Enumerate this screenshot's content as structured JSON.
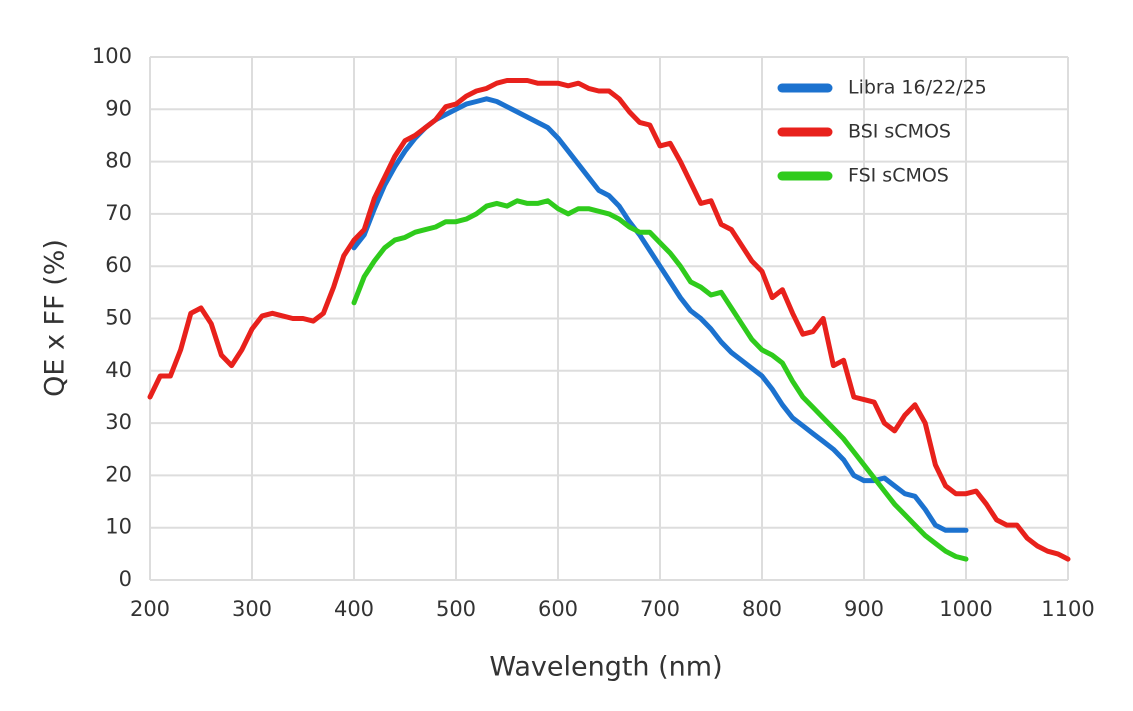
{
  "chart_data": {
    "type": "line",
    "x_label": "Wavelength (nm)",
    "y_label": "QE x FF (%)",
    "x": [
      200,
      210,
      220,
      230,
      240,
      250,
      260,
      270,
      280,
      290,
      300,
      310,
      320,
      330,
      340,
      350,
      360,
      370,
      380,
      390,
      400,
      410,
      420,
      430,
      440,
      450,
      460,
      470,
      480,
      490,
      500,
      510,
      520,
      530,
      540,
      550,
      560,
      570,
      580,
      590,
      600,
      610,
      620,
      630,
      640,
      650,
      660,
      670,
      680,
      690,
      700,
      710,
      720,
      730,
      740,
      750,
      760,
      770,
      780,
      790,
      800,
      810,
      820,
      830,
      840,
      850,
      860,
      870,
      880,
      890,
      900,
      910,
      920,
      930,
      940,
      950,
      960,
      970,
      980,
      990,
      1000,
      1010,
      1020,
      1030,
      1040,
      1050,
      1060,
      1070,
      1080,
      1090,
      1100
    ],
    "series": [
      {
        "name": "Libra 16/22/25",
        "color": "#1c72cf",
        "values": [
          null,
          null,
          null,
          null,
          null,
          null,
          null,
          null,
          null,
          null,
          null,
          null,
          null,
          null,
          null,
          null,
          null,
          null,
          null,
          null,
          63.5,
          66,
          71,
          75.5,
          79,
          82,
          84.5,
          86.5,
          88,
          89,
          90,
          91,
          91.5,
          92,
          91.5,
          90.5,
          89.5,
          88.5,
          87.5,
          86.5,
          84.5,
          82,
          79.5,
          77,
          74.5,
          73.5,
          71.5,
          68.5,
          66,
          63,
          60,
          57,
          54,
          51.5,
          50,
          48,
          45.5,
          43.5,
          42,
          40.5,
          39,
          36.5,
          33.5,
          31,
          29.5,
          28,
          26.5,
          25,
          23,
          20,
          19,
          19,
          19.5,
          18,
          16.5,
          16,
          13.5,
          10.5,
          9.5,
          9.5,
          9.5,
          null,
          null,
          null,
          null,
          null,
          null,
          null,
          null,
          null,
          null
        ]
      },
      {
        "name": "BSI sCMOS",
        "color": "#e8211c",
        "values": [
          35,
          39,
          39,
          44,
          51,
          52,
          49,
          43,
          41,
          44,
          48,
          50.5,
          51,
          50.5,
          50,
          50,
          49.5,
          51,
          56,
          62,
          65,
          67,
          73,
          77,
          81,
          84,
          85,
          86.5,
          88,
          90.5,
          91,
          92.5,
          93.5,
          94,
          95,
          95.5,
          95.5,
          95.5,
          95,
          95,
          95,
          94.5,
          95,
          94,
          93.5,
          93.5,
          92,
          89.5,
          87.5,
          87,
          83,
          83.5,
          80,
          76,
          72,
          72.5,
          68,
          67,
          64,
          61,
          59,
          54,
          55.5,
          51,
          47,
          47.5,
          50,
          41,
          42,
          35,
          34.5,
          34,
          30,
          28.5,
          31.5,
          33.5,
          30,
          22,
          18,
          16.5,
          16.5,
          17,
          14.5,
          11.5,
          10.5,
          10.5,
          8,
          6.5,
          5.5,
          5,
          4
        ]
      },
      {
        "name": "FSI sCMOS",
        "color": "#2fcb1c",
        "values": [
          null,
          null,
          null,
          null,
          null,
          null,
          null,
          null,
          null,
          null,
          null,
          null,
          null,
          null,
          null,
          null,
          null,
          null,
          null,
          null,
          53,
          58,
          61,
          63.5,
          65,
          65.5,
          66.5,
          67,
          67.5,
          68.5,
          68.5,
          69,
          70,
          71.5,
          72,
          71.5,
          72.5,
          72,
          72,
          72.5,
          71,
          70,
          71,
          71,
          70.5,
          70,
          69,
          67.5,
          66.5,
          66.5,
          64.5,
          62.5,
          60,
          57,
          56,
          54.5,
          55,
          52,
          49,
          46,
          44,
          43,
          41.5,
          38,
          35,
          33,
          31,
          29,
          27,
          24.5,
          22,
          19.5,
          17,
          14.5,
          12.5,
          10.5,
          8.5,
          7,
          5.5,
          4.5,
          4,
          null,
          null,
          null,
          null,
          null,
          null,
          null,
          null,
          null,
          null
        ]
      }
    ],
    "xlim": [
      200,
      1100
    ],
    "xticks": [
      200,
      300,
      400,
      500,
      600,
      700,
      800,
      900,
      1000,
      1100
    ],
    "ylim": [
      0,
      100
    ],
    "yticks": [
      0,
      10,
      20,
      30,
      40,
      50,
      60,
      70,
      80,
      90,
      100
    ],
    "grid": true,
    "legend": "upper right"
  }
}
